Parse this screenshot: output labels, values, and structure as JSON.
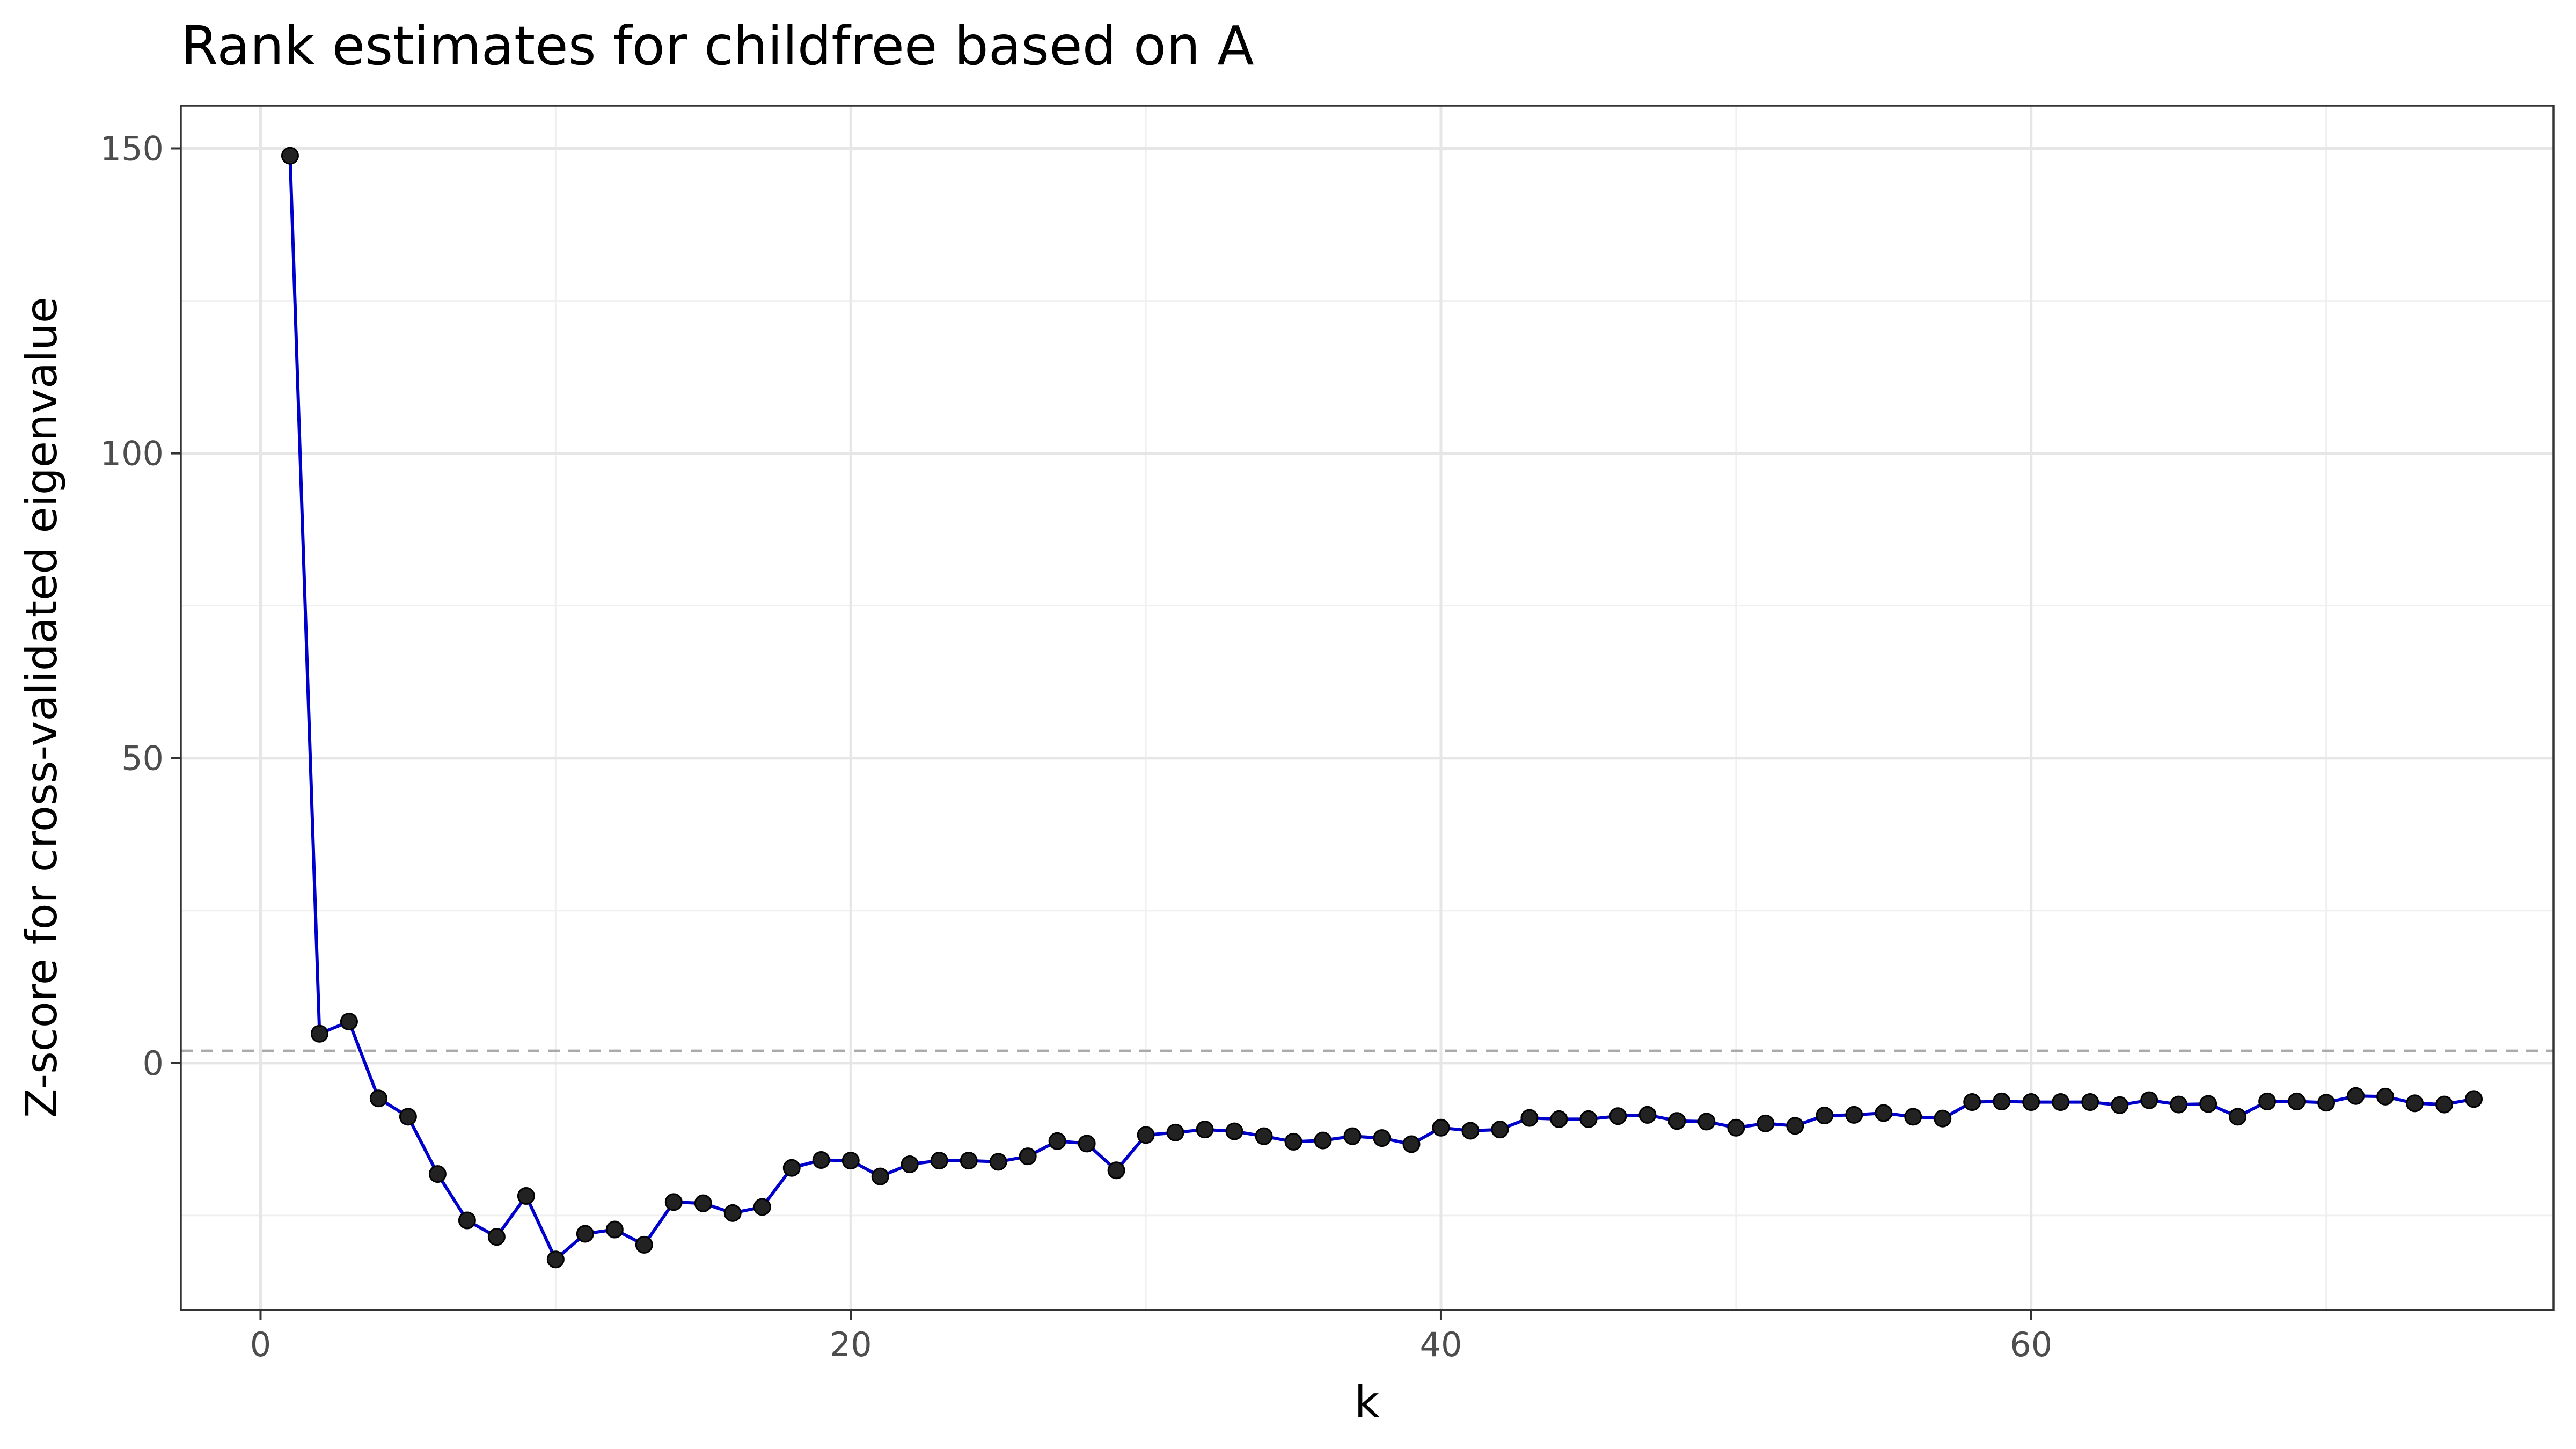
{
  "chart_data": {
    "type": "line",
    "title": "Rank estimates for childfree based on A",
    "xlabel": "k",
    "ylabel": "Z-score for cross-validated eigenvalue",
    "xlim": [
      -2.7,
      77.7
    ],
    "ylim": [
      -40.5,
      157
    ],
    "x_ticks": [
      0,
      20,
      40,
      60
    ],
    "x_tick_labels": [
      "0",
      "20",
      "40",
      "60"
    ],
    "y_ticks": [
      0,
      50,
      100,
      150
    ],
    "y_tick_labels": [
      "0",
      "50",
      "100",
      "150"
    ],
    "grid": true,
    "reference_line": {
      "y": 2,
      "style": "dashed",
      "color": "#aaaaaa"
    },
    "line_color": "#0000cc",
    "point_color": "#222222",
    "series": [
      {
        "x": [
          1,
          2,
          3,
          4,
          5,
          6,
          7,
          8,
          9,
          10,
          11,
          12,
          13,
          14,
          15,
          16,
          17,
          18,
          19,
          20,
          21,
          22,
          23,
          24,
          25,
          26,
          27,
          28,
          29,
          30,
          31,
          32,
          33,
          34,
          35,
          36,
          37,
          38,
          39,
          40,
          41,
          42,
          43,
          44,
          45,
          46,
          47,
          48,
          49,
          50,
          51,
          52,
          53,
          54,
          55,
          56,
          57,
          58,
          59,
          60,
          61,
          62,
          63,
          64,
          65,
          66,
          67,
          68,
          69,
          70,
          71,
          72,
          73,
          74,
          75
        ],
        "values": [
          148.8,
          4.8,
          6.8,
          -5.8,
          -8.8,
          -18.2,
          -25.8,
          -28.5,
          -21.8,
          -32.2,
          -28.0,
          -27.3,
          -29.8,
          -22.8,
          -23.0,
          -24.6,
          -23.6,
          -17.2,
          -15.9,
          -16.0,
          -18.6,
          -16.6,
          -16.0,
          -16.0,
          -16.2,
          -15.3,
          -12.8,
          -13.2,
          -17.6,
          -11.8,
          -11.4,
          -10.9,
          -11.2,
          -12.0,
          -12.9,
          -12.7,
          -12.0,
          -12.3,
          -13.3,
          -10.6,
          -11.1,
          -10.9,
          -9.0,
          -9.2,
          -9.2,
          -8.7,
          -8.5,
          -9.5,
          -9.6,
          -10.6,
          -9.9,
          -10.3,
          -8.6,
          -8.5,
          -8.2,
          -8.8,
          -9.1,
          -6.4,
          -6.3,
          -6.4,
          -6.4,
          -6.4,
          -6.9,
          -6.1,
          -6.8,
          -6.7,
          -8.8,
          -6.3,
          -6.3,
          -6.5,
          -5.4,
          -5.5,
          -6.6,
          -6.8,
          -5.9
        ]
      }
    ]
  }
}
